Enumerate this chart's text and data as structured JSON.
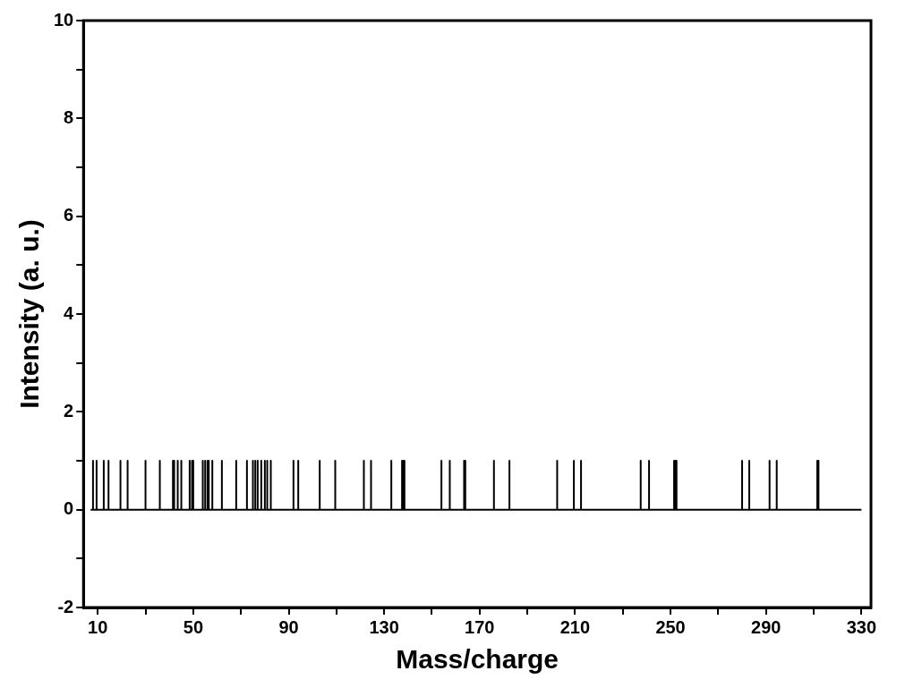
{
  "chart_data": {
    "type": "line",
    "xlabel": "Mass/charge",
    "ylabel": "Intensity (a. u.)",
    "x": [
      7,
      8,
      8,
      8,
      9.5,
      9.5,
      9.5,
      12.5,
      12.5,
      12.5,
      14.5,
      14.5,
      14.5,
      19.5,
      19.5,
      19.5,
      22.5,
      22.5,
      22.5,
      30,
      30,
      30,
      36,
      36,
      36,
      41.5,
      41.5,
      41.5,
      42,
      42,
      42,
      43.5,
      43.5,
      43.5,
      45,
      45,
      45,
      48.5,
      48.5,
      48.5,
      49.5,
      49.5,
      49.5,
      50,
      50,
      50,
      54,
      54,
      54,
      55,
      55,
      55,
      56,
      56,
      56,
      56.5,
      56.5,
      56.5,
      58,
      58,
      58,
      62,
      62,
      62,
      68,
      68,
      68,
      72.5,
      72.5,
      72.5,
      75,
      75,
      75,
      76,
      76,
      76,
      77,
      77,
      77,
      78.5,
      78.5,
      78.5,
      80,
      80,
      80,
      81,
      81,
      81,
      82.5,
      82.5,
      82.5,
      92,
      92,
      92,
      94,
      94,
      94,
      103,
      103,
      103,
      109.5,
      109.5,
      109.5,
      121.5,
      121.5,
      121.5,
      124.5,
      124.5,
      124.5,
      133,
      133,
      133,
      137.5,
      137.5,
      137.5,
      138,
      138,
      138,
      138.5,
      138.5,
      138.5,
      154,
      154,
      154,
      157.5,
      157.5,
      157.5,
      163.5,
      163.5,
      163.5,
      164,
      164,
      164,
      176,
      176,
      176,
      182.5,
      182.5,
      182.5,
      202.5,
      202.5,
      202.5,
      209.5,
      209.5,
      209.5,
      212.5,
      212.5,
      212.5,
      237.5,
      237.5,
      237.5,
      241,
      241,
      241,
      251.5,
      251.5,
      251.5,
      252,
      252,
      252,
      252.5,
      252.5,
      252.5,
      280,
      280,
      280,
      283,
      283,
      283,
      291.5,
      291.5,
      291.5,
      294.5,
      294.5,
      294.5,
      311.5,
      311.5,
      311.5,
      312,
      312,
      312,
      330
    ],
    "values": [
      0,
      0,
      1,
      0,
      0,
      1,
      0,
      0,
      1,
      0,
      0,
      1,
      0,
      0,
      1,
      0,
      0,
      1,
      0,
      0,
      1,
      0,
      0,
      1,
      0,
      0,
      1,
      0,
      0,
      1,
      0,
      0,
      1,
      0,
      0,
      1,
      0,
      0,
      1,
      0,
      0,
      1,
      0,
      0,
      1,
      0,
      0,
      1,
      0,
      0,
      1,
      0,
      0,
      1,
      0,
      0,
      1,
      0,
      0,
      1,
      0,
      0,
      1,
      0,
      0,
      1,
      0,
      0,
      1,
      0,
      0,
      1,
      0,
      0,
      1,
      0,
      0,
      1,
      0,
      0,
      1,
      0,
      0,
      1,
      0,
      0,
      1,
      0,
      0,
      1,
      0,
      0,
      1,
      0,
      0,
      1,
      0,
      0,
      1,
      0,
      0,
      1,
      0,
      0,
      1,
      0,
      0,
      1,
      0,
      0,
      1,
      0,
      0,
      1,
      0,
      0,
      1,
      0,
      0,
      1,
      0,
      0,
      1,
      0,
      0,
      1,
      0,
      0,
      1,
      0,
      0,
      1,
      0,
      0,
      1,
      0,
      0,
      1,
      0,
      0,
      1,
      0,
      0,
      1,
      0,
      0,
      1,
      0,
      0,
      1,
      0,
      0,
      1,
      0,
      0,
      1,
      0,
      0,
      1,
      0,
      0,
      1,
      0,
      0,
      1,
      0,
      0,
      1,
      0,
      0,
      1,
      0,
      0,
      1,
      0,
      0,
      1,
      0,
      0,
      1,
      0,
      0
    ],
    "color": "#000000",
    "marker": "none",
    "line_style": "solid",
    "grid": false,
    "legend": false,
    "xlim": [
      4,
      334
    ],
    "xticks": [
      10,
      {
        "value": 30,
        "label": null
      },
      50,
      {
        "value": 70,
        "label": null
      },
      90,
      {
        "value": 110,
        "label": null
      },
      130,
      {
        "value": 150,
        "label": null
      },
      170,
      {
        "value": 190,
        "label": null
      },
      210,
      {
        "value": 230,
        "label": null
      },
      250,
      {
        "value": 270,
        "label": null
      },
      290,
      {
        "value": 310,
        "label": null
      },
      330
    ],
    "ylim": [
      -2,
      10
    ],
    "yticks": [
      -2,
      {
        "value": -1,
        "label": null
      },
      0,
      {
        "value": 1,
        "label": null
      },
      2,
      {
        "value": 3,
        "label": null
      },
      4,
      {
        "value": 5,
        "label": null
      },
      6,
      {
        "value": 7,
        "label": null
      },
      8,
      {
        "value": 9,
        "label": null
      },
      10
    ]
  }
}
